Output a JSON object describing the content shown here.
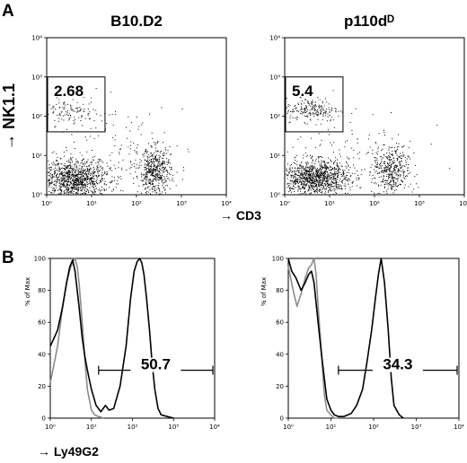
{
  "panel_a_label": "A",
  "panel_b_label": "B",
  "chart_data": [
    {
      "type": "scatter",
      "panel": "A",
      "title": "B10.D2",
      "ylabel": "→ NK1.1",
      "xlabel": "",
      "xscale": "log",
      "yscale": "log",
      "xlim": [
        1,
        10000
      ],
      "ylim": [
        1,
        10000
      ],
      "x_ticks": [
        "10⁰",
        "10¹",
        "10²",
        "10³",
        "10⁴"
      ],
      "y_ticks": [
        "10⁰",
        "10¹",
        "10²",
        "10³",
        "10⁴"
      ],
      "gate": {
        "x": [
          1,
          19
        ],
        "y": [
          40,
          1000
        ],
        "value": "2.68"
      },
      "clusters": [
        {
          "label": "CD3- NK1.1- population",
          "x_center": 4,
          "y_center": 2.5,
          "x_spread": 0.4,
          "y_spread": 0.25,
          "n": 1100
        },
        {
          "label": "CD3+ population",
          "x_center": 250,
          "y_center": 4,
          "x_spread": 0.18,
          "y_spread": 0.3,
          "n": 500
        },
        {
          "label": "NK1.1+ population",
          "x_center": 3.5,
          "y_center": 130,
          "x_spread": 0.3,
          "y_spread": 0.15,
          "n": 110
        },
        {
          "label": "background",
          "x_center": 30,
          "y_center": 15,
          "x_spread": 0.8,
          "y_spread": 0.6,
          "n": 120
        }
      ]
    },
    {
      "type": "scatter",
      "panel": "A",
      "title": "p110dᴰ",
      "ylabel": "",
      "xlabel": "→ CD3",
      "xscale": "log",
      "yscale": "log",
      "xlim": [
        1,
        10000
      ],
      "ylim": [
        1,
        10000
      ],
      "x_ticks": [
        "10⁰",
        "10¹",
        "10²",
        "10³",
        "10⁴"
      ],
      "y_ticks": [
        "10⁰",
        "10¹",
        "10²",
        "10³",
        "10⁴"
      ],
      "gate": {
        "x": [
          1,
          19
        ],
        "y": [
          40,
          1000
        ],
        "value": "5.4"
      },
      "clusters": [
        {
          "label": "CD3- NK1.1- population",
          "x_center": 4.5,
          "y_center": 2.8,
          "x_spread": 0.38,
          "y_spread": 0.22,
          "n": 1100
        },
        {
          "label": "CD3+ population",
          "x_center": 230,
          "y_center": 4,
          "x_spread": 0.2,
          "y_spread": 0.3,
          "n": 400
        },
        {
          "label": "NK1.1+ population",
          "x_center": 4,
          "y_center": 150,
          "x_spread": 0.3,
          "y_spread": 0.15,
          "n": 200
        },
        {
          "label": "background",
          "x_center": 30,
          "y_center": 15,
          "x_spread": 0.8,
          "y_spread": 0.6,
          "n": 120
        }
      ]
    },
    {
      "type": "line",
      "panel": "B",
      "title": "",
      "ylabel": "% of Max",
      "xlabel": "",
      "xscale": "log",
      "xlim": [
        1,
        10000
      ],
      "ylim": [
        0,
        100
      ],
      "x_ticks": [
        "10⁰",
        "10¹",
        "10²",
        "10³",
        "10⁴"
      ],
      "y_ticks": [
        "0",
        "20",
        "40",
        "60",
        "80",
        "100"
      ],
      "gate": {
        "x": [
          15,
          10000
        ],
        "value": "50.7"
      },
      "series": [
        {
          "color": "#8c8c8c",
          "x": [
            1,
            1.5,
            2,
            2.5,
            3,
            3.5,
            4,
            4.5,
            5,
            6,
            7,
            8,
            10,
            12,
            15,
            20
          ],
          "y": [
            22,
            45,
            70,
            85,
            93,
            98,
            100,
            95,
            85,
            60,
            35,
            18,
            5,
            2,
            1,
            0
          ]
        },
        {
          "color": "#000000",
          "x": [
            1,
            1.5,
            2,
            2.5,
            3,
            3.5,
            4,
            5,
            6,
            7,
            8,
            10,
            13,
            17,
            22,
            27,
            35,
            50,
            70,
            90,
            110,
            130,
            150,
            170,
            190,
            220,
            260,
            300,
            350,
            420,
            500,
            700,
            1000
          ],
          "y": [
            45,
            55,
            70,
            85,
            95,
            99,
            92,
            70,
            50,
            38,
            30,
            18,
            8,
            4,
            8,
            5,
            6,
            20,
            45,
            75,
            92,
            98,
            100,
            97,
            90,
            75,
            55,
            35,
            18,
            6,
            2,
            1,
            0
          ]
        }
      ]
    },
    {
      "type": "line",
      "panel": "B",
      "title": "",
      "ylabel": "% of Max",
      "xlabel": "→ Ly49G2",
      "xscale": "log",
      "xlim": [
        1,
        10000
      ],
      "ylim": [
        0,
        100
      ],
      "x_ticks": [
        "10⁰",
        "10¹",
        "10²",
        "10³",
        "10⁴"
      ],
      "y_ticks": [
        "0",
        "20",
        "40",
        "60",
        "80",
        "100"
      ],
      "gate": {
        "x": [
          15,
          10000
        ],
        "value": "34.3"
      },
      "series": [
        {
          "color": "#8c8c8c",
          "x": [
            1,
            1.3,
            1.6,
            2,
            2.5,
            3,
            3.5,
            4,
            4.5,
            5,
            6,
            7,
            8,
            10,
            12,
            15
          ],
          "y": [
            95,
            80,
            70,
            78,
            88,
            94,
            96,
            100,
            90,
            70,
            40,
            15,
            5,
            2,
            0,
            0
          ]
        },
        {
          "color": "#000000",
          "x": [
            1,
            1.2,
            1.5,
            2,
            2.5,
            3,
            3.5,
            4,
            5,
            6,
            7,
            8,
            10,
            12,
            15,
            20,
            30,
            40,
            55,
            70,
            90,
            110,
            130,
            150,
            180,
            220,
            260,
            300,
            400,
            500
          ],
          "y": [
            100,
            92,
            88,
            80,
            85,
            90,
            92,
            85,
            60,
            40,
            25,
            12,
            5,
            2,
            1,
            1,
            3,
            8,
            18,
            35,
            55,
            75,
            90,
            100,
            85,
            55,
            25,
            8,
            2,
            0
          ]
        }
      ]
    }
  ]
}
